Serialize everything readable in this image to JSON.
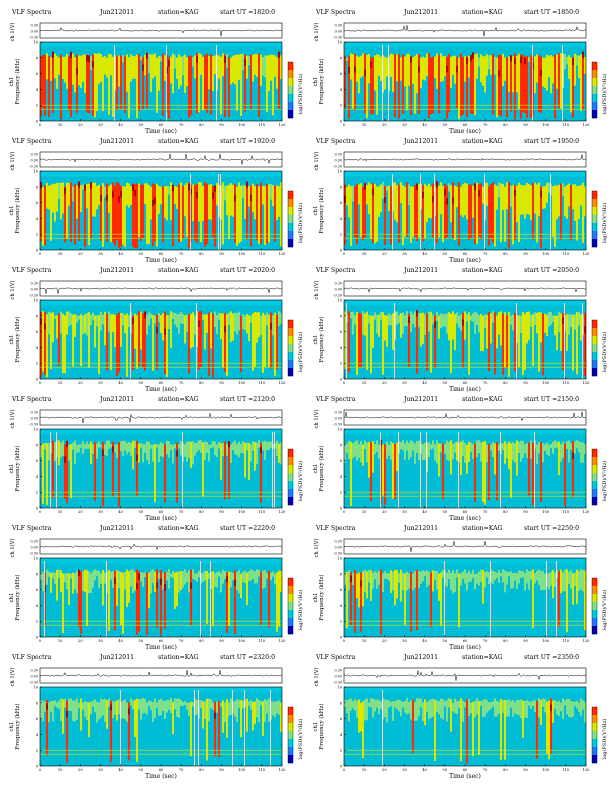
{
  "page": {
    "colorbar_label": "log(PSD)(V²/Hz)",
    "colors": {
      "background": "#00bcd4",
      "noise_low": "#7fe08a",
      "mid": "#d8e800",
      "high": "#ff2a00",
      "peak": "#b40000",
      "top_band": "#00c8e0",
      "trace": "#000000"
    }
  },
  "chart_data": [
    {
      "type": "heatmap",
      "header": {
        "left": "VLF Spectra",
        "date": "Jun212011",
        "station": "station=KAG",
        "start": "start  UT  =1820:0"
      },
      "ylabel": "Frequency (kHz)",
      "ylabel_top": "ch1",
      "xlabel": "Time (sec)",
      "trace_label": "ch 1(V)",
      "trace_ticks": [
        "0.30",
        "0.00",
        "-0.30"
      ],
      "x_range": [
        0,
        120
      ],
      "y_range": [
        0,
        10
      ],
      "x_ticks": [
        "0",
        "10",
        "20",
        "30",
        "40",
        "50",
        "60",
        "70",
        "80",
        "90",
        "100",
        "110",
        "120"
      ],
      "y_ticks": [
        "0",
        "2",
        "4",
        "6",
        "8",
        "10"
      ],
      "activity": 0.92,
      "colorbar_ticks": [
        "",
        "",
        ""
      ]
    },
    {
      "type": "heatmap",
      "header": {
        "left": "VLF Spectra",
        "date": "Jun212011",
        "station": "station=KAG",
        "start": "start  UT  =1850:0"
      },
      "ylabel": "Frequency (kHz)",
      "ylabel_top": "ch1",
      "xlabel": "Time (sec)",
      "trace_label": "ch 1(V)",
      "trace_ticks": [
        "0.30",
        "0.00",
        "-0.30"
      ],
      "x_range": [
        0,
        120
      ],
      "y_range": [
        0,
        10
      ],
      "x_ticks": [
        "0",
        "10",
        "20",
        "30",
        "40",
        "50",
        "60",
        "70",
        "80",
        "90",
        "100",
        "110",
        "120"
      ],
      "y_ticks": [
        "0",
        "2",
        "4",
        "6",
        "8",
        "10"
      ],
      "activity": 0.9,
      "colorbar_ticks": [
        "",
        "",
        ""
      ]
    },
    {
      "type": "heatmap",
      "header": {
        "left": "VLF Spectra",
        "date": "Jun212011",
        "station": "station=KAG",
        "start": "start  UT  =1920:0"
      },
      "ylabel": "Frequency (kHz)",
      "ylabel_top": "ch1",
      "xlabel": "Time (sec)",
      "trace_label": "ch 1(V)",
      "trace_ticks": [
        "0.30",
        "0.00",
        "-0.30"
      ],
      "x_range": [
        0,
        120
      ],
      "y_range": [
        0,
        10
      ],
      "x_ticks": [
        "0",
        "10",
        "20",
        "30",
        "40",
        "50",
        "60",
        "70",
        "80",
        "90",
        "100",
        "110",
        "120"
      ],
      "y_ticks": [
        "0",
        "2",
        "4",
        "6",
        "8",
        "10"
      ],
      "activity": 0.95,
      "colorbar_ticks": [
        "",
        "",
        ""
      ]
    },
    {
      "type": "heatmap",
      "header": {
        "left": "VLF Spectra",
        "date": "Jun212011",
        "station": "station=KAG",
        "start": "start  UT  =1950:0"
      },
      "ylabel": "Frequency (kHz)",
      "ylabel_top": "ch1",
      "xlabel": "Time (sec)",
      "trace_label": "ch 1(V)",
      "trace_ticks": [
        "0.30",
        "0.00",
        "-0.30"
      ],
      "x_range": [
        0,
        120
      ],
      "y_range": [
        0,
        10
      ],
      "x_ticks": [
        "0",
        "10",
        "20",
        "30",
        "40",
        "50",
        "60",
        "70",
        "80",
        "90",
        "100",
        "110",
        "120"
      ],
      "y_ticks": [
        "0",
        "2",
        "4",
        "6",
        "8",
        "10"
      ],
      "activity": 0.88,
      "colorbar_ticks": [
        "",
        "",
        ""
      ]
    },
    {
      "type": "heatmap",
      "header": {
        "left": "VLF Spectra",
        "date": "Jun212011",
        "station": "station=KAG",
        "start": "start  UT  =2020:0"
      },
      "ylabel": "Frequency (kHz)",
      "ylabel_top": "ch1",
      "xlabel": "Time (sec)",
      "trace_label": "ch 1(V)",
      "trace_ticks": [
        "0.30",
        "0.00",
        "-0.30"
      ],
      "x_range": [
        0,
        120
      ],
      "y_range": [
        0,
        10
      ],
      "x_ticks": [
        "0",
        "10",
        "20",
        "30",
        "40",
        "50",
        "60",
        "70",
        "80",
        "90",
        "100",
        "110",
        "120"
      ],
      "y_ticks": [
        "0",
        "2",
        "4",
        "6",
        "8",
        "10"
      ],
      "activity": 0.62,
      "colorbar_ticks": [
        "",
        "",
        ""
      ]
    },
    {
      "type": "heatmap",
      "header": {
        "left": "VLF Spectra",
        "date": "Jun212011",
        "station": "station=KAG",
        "start": "start  UT  =2050:0"
      },
      "ylabel": "Frequency (kHz)",
      "ylabel_top": "ch1",
      "xlabel": "Time (sec)",
      "trace_label": "ch 1(V)",
      "trace_ticks": [
        "0.30",
        "0.00",
        "-0.30"
      ],
      "x_range": [
        0,
        120
      ],
      "y_range": [
        0,
        10
      ],
      "x_ticks": [
        "0",
        "10",
        "20",
        "30",
        "40",
        "50",
        "60",
        "70",
        "80",
        "90",
        "100",
        "110",
        "120"
      ],
      "y_ticks": [
        "0",
        "2",
        "4",
        "6",
        "8",
        "10"
      ],
      "activity": 0.55,
      "colorbar_ticks": [
        "",
        "",
        ""
      ]
    },
    {
      "type": "heatmap",
      "header": {
        "left": "VLF Spectra",
        "date": "Jun212011",
        "station": "station=KAG",
        "start": "start  UT  =2120:0"
      },
      "ylabel": "Frequency (kHz)",
      "ylabel_top": "ch1",
      "xlabel": "Time (sec)",
      "trace_label": "ch 1(V)",
      "trace_ticks": [
        "0.30",
        "0.00",
        "-0.30"
      ],
      "x_range": [
        0,
        120
      ],
      "y_range": [
        0,
        10
      ],
      "x_ticks": [
        "0",
        "10",
        "20",
        "30",
        "40",
        "50",
        "60",
        "70",
        "80",
        "90",
        "100",
        "110",
        "120"
      ],
      "y_ticks": [
        "0",
        "2",
        "4",
        "6",
        "8",
        "10"
      ],
      "activity": 0.3,
      "colorbar_ticks": [
        "",
        "",
        ""
      ]
    },
    {
      "type": "heatmap",
      "header": {
        "left": "VLF Spectra",
        "date": "Jun212011",
        "station": "station=KAG",
        "start": "start  UT  =2150:0"
      },
      "ylabel": "Frequency (kHz)",
      "ylabel_top": "ch1",
      "xlabel": "Time (sec)",
      "trace_label": "ch 1(V)",
      "trace_ticks": [
        "0.30",
        "0.00",
        "-0.30"
      ],
      "x_range": [
        0,
        120
      ],
      "y_range": [
        0,
        10
      ],
      "x_ticks": [
        "0",
        "10",
        "20",
        "30",
        "40",
        "50",
        "60",
        "70",
        "80",
        "90",
        "100",
        "110",
        "120"
      ],
      "y_ticks": [
        "0",
        "2",
        "4",
        "6",
        "8",
        "10"
      ],
      "activity": 0.3,
      "colorbar_ticks": [
        "",
        "",
        ""
      ]
    },
    {
      "type": "heatmap",
      "header": {
        "left": "VLF Spectra",
        "date": "Jun212011",
        "station": "station=KAG",
        "start": "start  UT  =2220:0"
      },
      "ylabel": "Frequency (kHz)",
      "ylabel_top": "ch1",
      "xlabel": "Time (sec)",
      "trace_label": "ch 1(V)",
      "trace_ticks": [
        "0.30",
        "0.00",
        "-0.30"
      ],
      "x_range": [
        0,
        120
      ],
      "y_range": [
        0,
        10
      ],
      "x_ticks": [
        "0",
        "10",
        "20",
        "30",
        "40",
        "50",
        "60",
        "70",
        "80",
        "90",
        "100",
        "110",
        "120"
      ],
      "y_ticks": [
        "0",
        "2",
        "4",
        "6",
        "8",
        "10"
      ],
      "activity": 0.28,
      "colorbar_ticks": [
        "",
        "",
        ""
      ]
    },
    {
      "type": "heatmap",
      "header": {
        "left": "VLF Spectra",
        "date": "Jun212011",
        "station": "station=KAG",
        "start": "start  UT  =2250:0"
      },
      "ylabel": "Frequency (kHz)",
      "ylabel_top": "ch1",
      "xlabel": "Time (sec)",
      "trace_label": "ch 1(V)",
      "trace_ticks": [
        "0.30",
        "0.00",
        "-0.30"
      ],
      "x_range": [
        0,
        120
      ],
      "y_range": [
        0,
        10
      ],
      "x_ticks": [
        "0",
        "10",
        "20",
        "30",
        "40",
        "50",
        "60",
        "70",
        "80",
        "90",
        "100",
        "110",
        "120"
      ],
      "y_ticks": [
        "0",
        "2",
        "4",
        "6",
        "8",
        "10"
      ],
      "activity": 0.22,
      "colorbar_ticks": [
        "",
        "",
        ""
      ]
    },
    {
      "type": "heatmap",
      "header": {
        "left": "VLF Spectra",
        "date": "Jun212011",
        "station": "station=KAG",
        "start": "start  UT  =2320:0"
      },
      "ylabel": "Frequency (kHz)",
      "ylabel_top": "ch1",
      "xlabel": "Time (sec)",
      "trace_label": "ch 1(V)",
      "trace_ticks": [
        "0.30",
        "0.00",
        "-0.30"
      ],
      "x_range": [
        0,
        120
      ],
      "y_range": [
        0,
        10
      ],
      "x_ticks": [
        "0",
        "10",
        "20",
        "30",
        "40",
        "50",
        "60",
        "70",
        "80",
        "90",
        "100",
        "110",
        "120"
      ],
      "y_ticks": [
        "0",
        "2",
        "4",
        "6",
        "8",
        "10"
      ],
      "activity": 0.2,
      "colorbar_ticks": [
        "",
        "",
        ""
      ]
    },
    {
      "type": "heatmap",
      "header": {
        "left": "VLF Spectra",
        "date": "Jun212011",
        "station": "station=KAG",
        "start": "start  UT  =2350:0"
      },
      "ylabel": "Frequency (kHz)",
      "ylabel_top": "ch1",
      "xlabel": "Time (sec)",
      "trace_label": "ch 1(V)",
      "trace_ticks": [
        "0.30",
        "0.00",
        "-0.30"
      ],
      "x_range": [
        0,
        120
      ],
      "y_range": [
        0,
        10
      ],
      "x_ticks": [
        "0",
        "10",
        "20",
        "30",
        "40",
        "50",
        "60",
        "70",
        "80",
        "90",
        "100",
        "110",
        "120"
      ],
      "y_ticks": [
        "0",
        "2",
        "4",
        "6",
        "8",
        "10"
      ],
      "activity": 0.18,
      "colorbar_ticks": [
        "",
        "",
        ""
      ]
    }
  ]
}
